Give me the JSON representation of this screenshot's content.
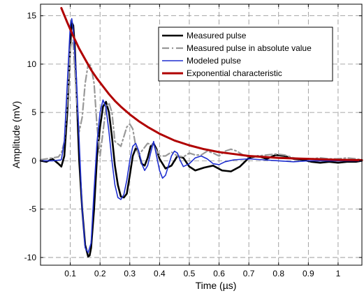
{
  "chart_data": {
    "type": "line",
    "xlabel": "Time (µs)",
    "ylabel": "Amplitude (mV)",
    "xlim": [
      0,
      1.08
    ],
    "ylim": [
      -10.8,
      16.2
    ],
    "xticks": [
      0.1,
      0.2,
      0.3,
      0.4,
      0.5,
      0.6,
      0.7,
      0.8,
      0.9,
      1
    ],
    "xtick_labels": [
      "0.1",
      "0.2",
      "0.3",
      "0.4",
      "0.5",
      "0.6",
      "0.7",
      "0.8",
      "0.9",
      "1"
    ],
    "yticks": [
      -10,
      -5,
      0,
      5,
      10,
      15
    ],
    "ytick_labels": [
      "-10",
      "-5",
      "0",
      "5",
      "10",
      "15"
    ],
    "grid": true,
    "legend_position": "top-right",
    "series": [
      {
        "name": "Measured pulse",
        "color": "#000000",
        "style": "solid",
        "width": 2.6,
        "x": [
          0.0,
          0.02,
          0.04,
          0.06,
          0.07,
          0.08,
          0.09,
          0.1,
          0.105,
          0.11,
          0.115,
          0.12,
          0.13,
          0.14,
          0.15,
          0.16,
          0.165,
          0.17,
          0.18,
          0.19,
          0.2,
          0.21,
          0.22,
          0.23,
          0.24,
          0.25,
          0.26,
          0.27,
          0.28,
          0.29,
          0.3,
          0.31,
          0.32,
          0.33,
          0.34,
          0.35,
          0.36,
          0.37,
          0.38,
          0.39,
          0.4,
          0.42,
          0.44,
          0.46,
          0.48,
          0.5,
          0.52,
          0.55,
          0.58,
          0.61,
          0.64,
          0.67,
          0.7,
          0.73,
          0.76,
          0.79,
          0.82,
          0.85,
          0.88,
          0.91,
          0.94,
          0.97,
          1.0,
          1.03,
          1.06,
          1.08
        ],
        "y": [
          0,
          -0.1,
          0.2,
          -0.3,
          -0.6,
          0.5,
          5.0,
          12.0,
          14.3,
          14.0,
          12.0,
          8.0,
          0.0,
          -5.0,
          -8.7,
          -9.9,
          -9.8,
          -9.0,
          -5.0,
          0.5,
          3.5,
          5.6,
          6.1,
          5.0,
          2.5,
          -0.5,
          -2.5,
          -3.7,
          -3.8,
          -3.4,
          -1.5,
          0.5,
          1.3,
          0.8,
          -0.3,
          -0.5,
          0.3,
          1.5,
          1.8,
          1.2,
          0.2,
          -0.8,
          -0.5,
          0.5,
          0.3,
          -0.6,
          -1.0,
          -0.7,
          -0.5,
          -1.0,
          -1.1,
          -0.6,
          0.3,
          0.5,
          0.2,
          0.6,
          0.5,
          0.2,
          0.1,
          -0.1,
          -0.2,
          -0.1,
          -0.2,
          -0.1,
          -0.1,
          0.0
        ]
      },
      {
        "name": "Measured pulse in absolute value",
        "color": "#999999",
        "style": "dashdot",
        "width": 2.2,
        "x": [
          0.0,
          0.02,
          0.04,
          0.06,
          0.07,
          0.08,
          0.09,
          0.1,
          0.105,
          0.11,
          0.12,
          0.13,
          0.14,
          0.15,
          0.16,
          0.17,
          0.18,
          0.19,
          0.2,
          0.21,
          0.22,
          0.23,
          0.24,
          0.25,
          0.27,
          0.29,
          0.3,
          0.31,
          0.32,
          0.33,
          0.34,
          0.36,
          0.38,
          0.4,
          0.42,
          0.44,
          0.46,
          0.48,
          0.5,
          0.52,
          0.54,
          0.56,
          0.58,
          0.6,
          0.62,
          0.64,
          0.66,
          0.68,
          0.7,
          0.73,
          0.76,
          0.79,
          0.82,
          0.85,
          0.88,
          0.91,
          0.94,
          0.97,
          1.0,
          1.03,
          1.06,
          1.08
        ],
        "y": [
          0.1,
          0.2,
          0.3,
          0.4,
          0.8,
          2.0,
          6.0,
          11.5,
          12.5,
          12.0,
          7.0,
          3.0,
          4.5,
          8.0,
          10.0,
          9.8,
          8.0,
          3.5,
          0.5,
          3.0,
          5.5,
          6.0,
          5.0,
          2.0,
          1.5,
          3.5,
          3.8,
          3.3,
          1.5,
          0.6,
          1.0,
          1.8,
          1.6,
          0.5,
          0.5,
          0.9,
          0.5,
          0.4,
          0.8,
          0.6,
          0.6,
          1.0,
          0.8,
          0.5,
          1.0,
          1.2,
          1.0,
          0.6,
          0.4,
          0.5,
          0.6,
          0.7,
          0.6,
          0.3,
          0.2,
          0.2,
          0.3,
          0.2,
          0.2,
          0.3,
          0.2,
          0.1
        ]
      },
      {
        "name": "Modeled pulse",
        "color": "#1f2fd0",
        "style": "solid",
        "width": 1.6,
        "x": [
          0.0,
          0.04,
          0.07,
          0.08,
          0.09,
          0.1,
          0.105,
          0.11,
          0.12,
          0.13,
          0.14,
          0.15,
          0.16,
          0.17,
          0.18,
          0.19,
          0.2,
          0.21,
          0.22,
          0.23,
          0.24,
          0.25,
          0.26,
          0.27,
          0.28,
          0.29,
          0.3,
          0.31,
          0.32,
          0.33,
          0.34,
          0.35,
          0.36,
          0.37,
          0.38,
          0.39,
          0.4,
          0.41,
          0.42,
          0.43,
          0.44,
          0.45,
          0.46,
          0.47,
          0.48,
          0.5,
          0.52,
          0.54,
          0.56,
          0.58,
          0.6,
          0.62,
          0.65,
          0.7,
          0.75,
          0.8,
          0.85,
          0.9,
          0.95,
          1.0,
          1.05,
          1.08
        ],
        "y": [
          0,
          0,
          0.1,
          2.0,
          8.0,
          14.0,
          14.7,
          13.5,
          9.0,
          2.0,
          -5.0,
          -9.0,
          -9.5,
          -8.5,
          -3.0,
          2.0,
          5.0,
          6.3,
          5.5,
          3.0,
          0.0,
          -2.5,
          -3.8,
          -4.0,
          -3.5,
          -2.0,
          0.0,
          1.5,
          1.8,
          1.0,
          -0.3,
          -1.0,
          -0.5,
          0.8,
          2.0,
          0.5,
          -1.0,
          -1.8,
          -1.5,
          -0.5,
          0.5,
          1.0,
          0.8,
          0.0,
          -0.6,
          -0.3,
          0.3,
          0.5,
          0.2,
          -0.3,
          -0.4,
          -0.1,
          0.1,
          0.2,
          0.1,
          0.0,
          -0.1,
          0.0,
          0.0,
          0.0,
          0.0,
          0.0
        ]
      },
      {
        "name": "Exponential characteristic",
        "color": "#b00000",
        "style": "solid",
        "width": 3.0,
        "formula_points": true,
        "x": [
          0.07,
          0.09,
          0.11,
          0.13,
          0.15,
          0.17,
          0.19,
          0.21,
          0.23,
          0.25,
          0.27,
          0.3,
          0.33,
          0.36,
          0.4,
          0.45,
          0.5,
          0.55,
          0.6,
          0.65,
          0.7,
          0.75,
          0.8,
          0.85,
          0.9,
          0.95,
          1.0,
          1.05,
          1.08
        ],
        "y": [
          15.8,
          14.3,
          12.9,
          11.6,
          10.5,
          9.4,
          8.5,
          7.7,
          6.9,
          6.2,
          5.6,
          4.8,
          4.1,
          3.5,
          2.8,
          2.1,
          1.6,
          1.2,
          0.9,
          0.7,
          0.5,
          0.4,
          0.3,
          0.25,
          0.2,
          0.15,
          0.1,
          0.08,
          0.07
        ]
      }
    ]
  }
}
